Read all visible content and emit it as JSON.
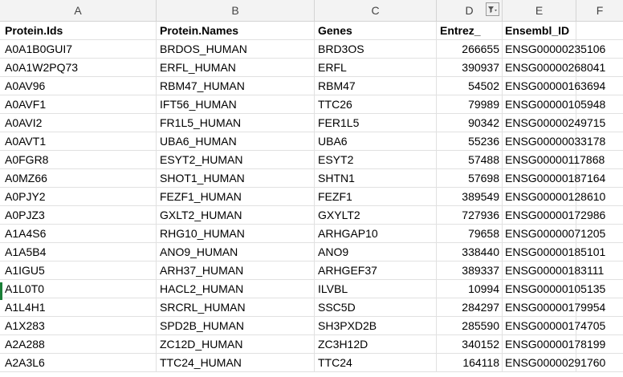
{
  "column_letters": [
    "A",
    "B",
    "C",
    "D",
    "E",
    "F"
  ],
  "headers": {
    "protein_ids": "Protein.Ids",
    "protein_names": "Protein.Names",
    "genes": "Genes",
    "entrez": "Entrez_",
    "ensembl": "Ensembl_ID"
  },
  "filter_icon": "filter-active-icon",
  "rows": [
    {
      "id": "A0A1B0GUI7",
      "name": "BRDOS_HUMAN",
      "gene": "BRD3OS",
      "entrez": "266655",
      "ensembl": "ENSG00000235106"
    },
    {
      "id": "A0A1W2PQ73",
      "name": "ERFL_HUMAN",
      "gene": "ERFL",
      "entrez": "390937",
      "ensembl": "ENSG00000268041"
    },
    {
      "id": "A0AV96",
      "name": "RBM47_HUMAN",
      "gene": "RBM47",
      "entrez": "54502",
      "ensembl": "ENSG00000163694"
    },
    {
      "id": "A0AVF1",
      "name": "IFT56_HUMAN",
      "gene": "TTC26",
      "entrez": "79989",
      "ensembl": "ENSG00000105948"
    },
    {
      "id": "A0AVI2",
      "name": "FR1L5_HUMAN",
      "gene": "FER1L5",
      "entrez": "90342",
      "ensembl": "ENSG00000249715"
    },
    {
      "id": "A0AVT1",
      "name": "UBA6_HUMAN",
      "gene": "UBA6",
      "entrez": "55236",
      "ensembl": "ENSG00000033178"
    },
    {
      "id": "A0FGR8",
      "name": "ESYT2_HUMAN",
      "gene": "ESYT2",
      "entrez": "57488",
      "ensembl": "ENSG00000117868"
    },
    {
      "id": "A0MZ66",
      "name": "SHOT1_HUMAN",
      "gene": "SHTN1",
      "entrez": "57698",
      "ensembl": "ENSG00000187164"
    },
    {
      "id": "A0PJY2",
      "name": "FEZF1_HUMAN",
      "gene": "FEZF1",
      "entrez": "389549",
      "ensembl": "ENSG00000128610"
    },
    {
      "id": "A0PJZ3",
      "name": "GXLT2_HUMAN",
      "gene": "GXYLT2",
      "entrez": "727936",
      "ensembl": "ENSG00000172986"
    },
    {
      "id": "A1A4S6",
      "name": "RHG10_HUMAN",
      "gene": "ARHGAP10",
      "entrez": "79658",
      "ensembl": "ENSG00000071205"
    },
    {
      "id": "A1A5B4",
      "name": "ANO9_HUMAN",
      "gene": "ANO9",
      "entrez": "338440",
      "ensembl": "ENSG00000185101"
    },
    {
      "id": "A1IGU5",
      "name": "ARH37_HUMAN",
      "gene": "ARHGEF37",
      "entrez": "389337",
      "ensembl": "ENSG00000183111"
    },
    {
      "id": "A1L0T0",
      "name": "HACL2_HUMAN",
      "gene": "ILVBL",
      "entrez": "10994",
      "ensembl": "ENSG00000105135"
    },
    {
      "id": "A1L4H1",
      "name": "SRCRL_HUMAN",
      "gene": "SSC5D",
      "entrez": "284297",
      "ensembl": "ENSG00000179954"
    },
    {
      "id": "A1X283",
      "name": "SPD2B_HUMAN",
      "gene": "SH3PXD2B",
      "entrez": "285590",
      "ensembl": "ENSG00000174705"
    },
    {
      "id": "A2A288",
      "name": "ZC12D_HUMAN",
      "gene": "ZC3H12D",
      "entrez": "340152",
      "ensembl": "ENSG00000178199"
    },
    {
      "id": "A2A3L6",
      "name": "TTC24_HUMAN",
      "gene": "TTC24",
      "entrez": "164118",
      "ensembl": "ENSG00000291760"
    }
  ]
}
